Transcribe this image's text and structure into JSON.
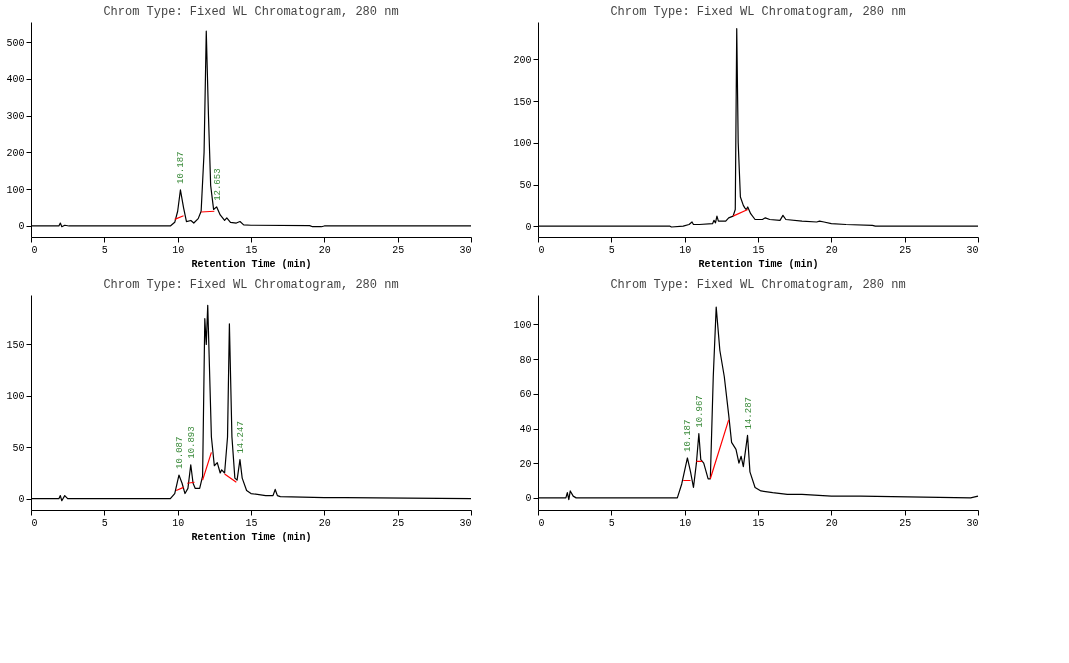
{
  "chart_data": [
    {
      "type": "line",
      "title": "Chrom Type: Fixed WL Chromatogram, 280 nm",
      "xlabel": "Retention Time (min)",
      "xlim": [
        0,
        30
      ],
      "xticks": [
        0,
        5,
        10,
        15,
        20,
        25,
        30
      ],
      "ylim": [
        -30,
        555
      ],
      "yticks": [
        0,
        100,
        200,
        300,
        400,
        500
      ],
      "grid": false,
      "series": [
        {
          "color": "#000000",
          "x": [
            0,
            1.9,
            2.0,
            2.1,
            2.3,
            2.6,
            9.5,
            9.8,
            10.0,
            10.187,
            10.4,
            10.6,
            10.9,
            11.1,
            11.4,
            11.6,
            11.8,
            11.95,
            12.1,
            12.25,
            12.45,
            12.653,
            12.9,
            13.2,
            13.35,
            13.6,
            14.0,
            14.25,
            14.5,
            15,
            19,
            19.2,
            19.8,
            20,
            30
          ],
          "values": [
            0,
            0,
            8,
            -2,
            2,
            0,
            0,
            10,
            40,
            98,
            50,
            12,
            15,
            8,
            20,
            40,
            200,
            530,
            300,
            110,
            45,
            52,
            30,
            15,
            22,
            10,
            8,
            12,
            3,
            2,
            1,
            -2,
            -2,
            0,
            0
          ]
        },
        {
          "color": "#ff0000",
          "x": [
            9.8,
            10.4,
            11.0,
            11.6,
            12.5
          ],
          "values": [
            18,
            28,
            null,
            38,
            40
          ]
        }
      ],
      "annotations": [
        {
          "text": "10.187",
          "x": 10.187,
          "y": 98
        },
        {
          "text": "12.653",
          "x": 12.653,
          "y": 52
        }
      ]
    },
    {
      "type": "line",
      "title": "Chrom Type: Fixed WL Chromatogram, 280 nm",
      "xlabel": "Retention Time (min)",
      "xlim": [
        0,
        30
      ],
      "xticks": [
        0,
        5,
        10,
        15,
        20,
        25,
        30
      ],
      "ylim": [
        -13,
        245
      ],
      "yticks": [
        0,
        50,
        100,
        150,
        200
      ],
      "grid": false,
      "series": [
        {
          "color": "#000000",
          "x": [
            0,
            9,
            9.1,
            9.9,
            10.3,
            10.5,
            10.6,
            11,
            11.9,
            12.0,
            12.1,
            12.2,
            12.3,
            12.8,
            13.0,
            13.3,
            13.45,
            13.55,
            13.65,
            13.8,
            14.0,
            14.1,
            14.2,
            14.3,
            14.5,
            14.8,
            15.3,
            15.5,
            15.8,
            16.5,
            16.7,
            16.9,
            18,
            19,
            19.2,
            19.5,
            20,
            21,
            22.8,
            23,
            30
          ],
          "values": [
            0,
            0,
            -1,
            0,
            2,
            5,
            2,
            2,
            3,
            7,
            4,
            12,
            6,
            6,
            10,
            12,
            20,
            237,
            100,
            35,
            25,
            22,
            20,
            23,
            15,
            8,
            8,
            10,
            8,
            7,
            13,
            8,
            6,
            5,
            6,
            5,
            3,
            2,
            1,
            0,
            0
          ]
        },
        {
          "color": "#ff0000",
          "x": [
            13.3,
            14.3
          ],
          "values": [
            12,
            20
          ]
        }
      ]
    },
    {
      "type": "line",
      "title": "Chrom Type: Fixed WL Chromatogram, 280 nm",
      "xlabel": "Retention Time (min)",
      "xlim": [
        0,
        30
      ],
      "xticks": [
        0,
        5,
        10,
        15,
        20,
        25,
        30
      ],
      "ylim": [
        -11,
        198
      ],
      "yticks": [
        0,
        50,
        100,
        150
      ],
      "grid": false,
      "series": [
        {
          "color": "#000000",
          "x": [
            0,
            1.9,
            2.0,
            2.1,
            2.3,
            2.5,
            9.5,
            9.8,
            10.087,
            10.3,
            10.5,
            10.7,
            10.893,
            11.05,
            11.2,
            11.5,
            11.7,
            11.85,
            11.95,
            12.05,
            12.3,
            12.5,
            12.7,
            12.9,
            13.0,
            13.2,
            13.4,
            13.527,
            13.7,
            13.9,
            14.05,
            14.247,
            14.4,
            14.7,
            15,
            16,
            16.5,
            16.65,
            16.8,
            17,
            20,
            21.4,
            30
          ],
          "values": [
            0,
            0,
            3,
            -2,
            3,
            0,
            0,
            5,
            23,
            15,
            5,
            10,
            33,
            15,
            10,
            10,
            22,
            175,
            150,
            188,
            60,
            32,
            35,
            25,
            28,
            25,
            60,
            170,
            60,
            20,
            18,
            38,
            20,
            8,
            5,
            3,
            3,
            9,
            3,
            2,
            1,
            1,
            0
          ]
        },
        {
          "color": "#ff0000",
          "x": [
            9.9,
            10.4,
            10.5,
            10.65,
            11.15,
            11.3,
            11.7,
            12.3,
            12.7,
            13.2,
            14.0
          ],
          "values": [
            8,
            11,
            null,
            15,
            16,
            null,
            18,
            45,
            null,
            24,
            16
          ]
        }
      ],
      "annotations": [
        {
          "text": "10.087",
          "x": 10.087,
          "y": 23
        },
        {
          "text": "10.893",
          "x": 10.893,
          "y": 33
        },
        {
          "text": "14.247",
          "x": 14.247,
          "y": 38
        }
      ]
    },
    {
      "type": "line",
      "title": "Chrom Type: Fixed WL Chromatogram, 280 nm",
      "xlim": [
        0,
        30
      ],
      "xticks": [
        0,
        5,
        10,
        15,
        20,
        25,
        30
      ],
      "ylim": [
        -7,
        117
      ],
      "yticks": [
        0,
        20,
        40,
        60,
        80,
        100
      ],
      "grid": false,
      "series": [
        {
          "color": "#000000",
          "x": [
            0,
            1.9,
            2.0,
            2.1,
            2.2,
            2.4,
            2.6,
            8.7,
            9.5,
            9.8,
            10.187,
            10.4,
            10.6,
            10.8,
            10.967,
            11.1,
            11.3,
            11.6,
            11.75,
            11.95,
            12.15,
            12.4,
            12.7,
            13.0,
            13.2,
            13.5,
            13.7,
            13.85,
            14.0,
            14.287,
            14.45,
            14.8,
            15.2,
            16,
            17,
            18,
            20,
            22,
            29.5,
            30
          ],
          "values": [
            0,
            0,
            3,
            -1,
            4,
            1,
            0,
            0,
            0,
            8,
            23,
            15,
            6,
            20,
            37,
            22,
            20,
            11,
            11,
            70,
            110,
            85,
            70,
            48,
            32,
            28,
            20,
            24,
            18,
            36,
            15,
            6,
            4,
            3,
            2,
            2,
            1,
            1,
            0,
            1
          ]
        },
        {
          "color": "#ff0000",
          "x": [
            9.9,
            10.4,
            10.6,
            10.8,
            11.2,
            11.5,
            11.75,
            13.0
          ],
          "values": [
            10,
            10,
            null,
            21,
            21,
            null,
            11,
            45
          ]
        }
      ],
      "annotations": [
        {
          "text": "10.187",
          "x": 10.187,
          "y": 23
        },
        {
          "text": "10.967",
          "x": 10.967,
          "y": 37
        },
        {
          "text": "14.287",
          "x": 14.287,
          "y": 36
        }
      ]
    }
  ]
}
